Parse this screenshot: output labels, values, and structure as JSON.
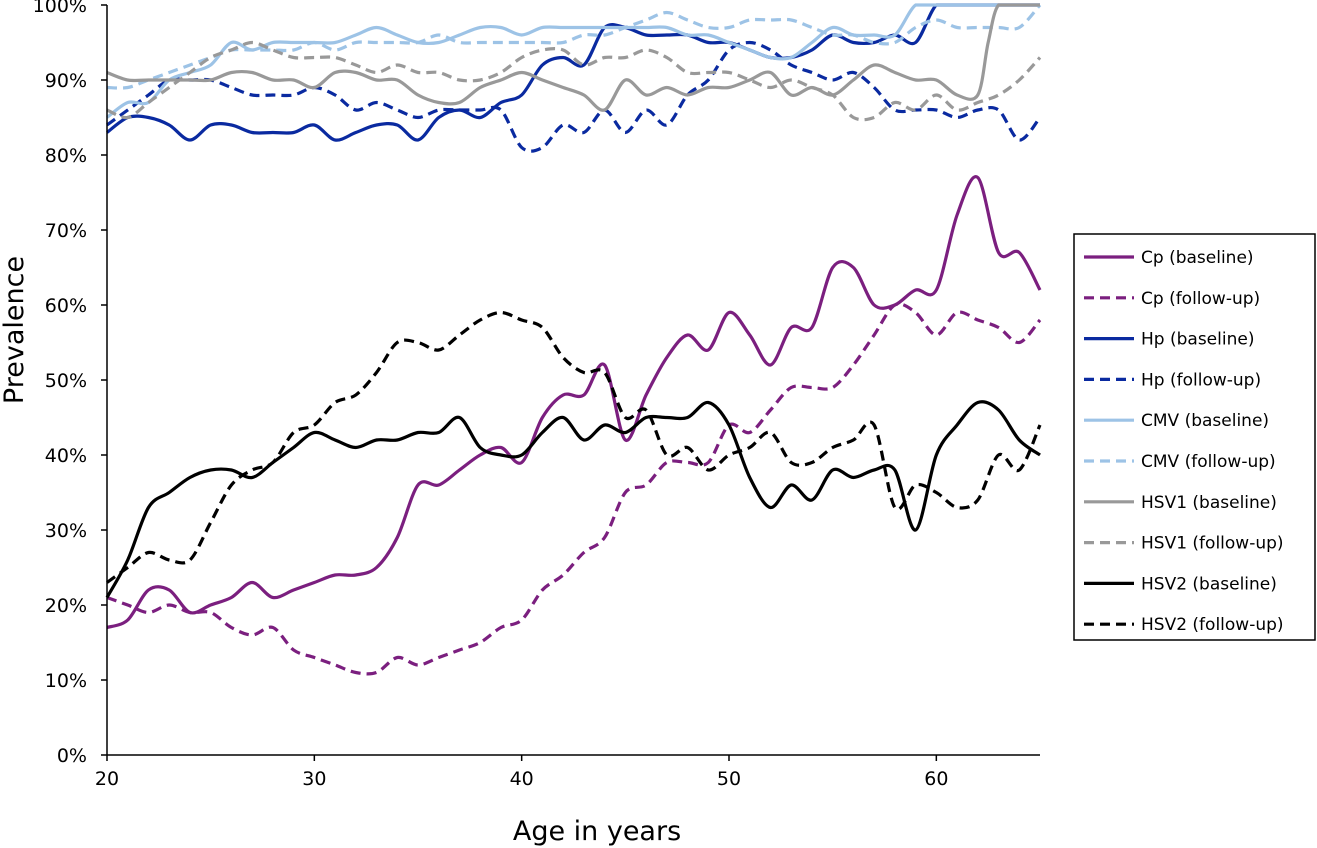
{
  "chart_data": {
    "type": "line",
    "title": "",
    "xlabel": "Age in years",
    "ylabel": "Prevalence",
    "xlim": [
      20,
      65
    ],
    "ylim": [
      0,
      100
    ],
    "x_ticks": [
      20,
      30,
      40,
      50,
      60
    ],
    "y_ticks": [
      0,
      10,
      20,
      30,
      40,
      50,
      60,
      70,
      80,
      90,
      100
    ],
    "y_tick_suffix": "%",
    "grid": false,
    "legend_position": "right",
    "series": [
      {
        "name": "Cp (baseline)",
        "color": "#7B1F7F",
        "dash": "solid",
        "x": [
          20,
          21,
          22,
          23,
          24,
          25,
          26,
          27,
          28,
          29,
          30,
          31,
          32,
          33,
          34,
          35,
          36,
          37,
          38,
          39,
          40,
          41,
          42,
          43,
          44,
          45,
          46,
          47,
          48,
          49,
          50,
          51,
          52,
          53,
          54,
          55,
          56,
          57,
          58,
          59,
          60,
          61,
          62,
          63,
          64,
          65
        ],
        "y": [
          17,
          18,
          22,
          22,
          19,
          20,
          21,
          23,
          21,
          22,
          23,
          24,
          24,
          25,
          29,
          36,
          36,
          38,
          40,
          41,
          39,
          45,
          48,
          48,
          52,
          42,
          48,
          53,
          56,
          54,
          59,
          56,
          52,
          57,
          57,
          65,
          65,
          60,
          60,
          62,
          62,
          72,
          77,
          67,
          67,
          62
        ]
      },
      {
        "name": "Cp (follow-up)",
        "color": "#7B1F7F",
        "dash": "dashed",
        "x": [
          20,
          21,
          22,
          23,
          24,
          25,
          26,
          27,
          28,
          29,
          30,
          31,
          32,
          33,
          34,
          35,
          36,
          37,
          38,
          39,
          40,
          41,
          42,
          43,
          44,
          45,
          46,
          47,
          48,
          49,
          50,
          51,
          52,
          53,
          54,
          55,
          56,
          57,
          58,
          59,
          60,
          61,
          62,
          63,
          64,
          65
        ],
        "y": [
          21,
          20,
          19,
          20,
          19,
          19,
          17,
          16,
          17,
          14,
          13,
          12,
          11,
          11,
          13,
          12,
          13,
          14,
          15,
          17,
          18,
          22,
          24,
          27,
          29,
          35,
          36,
          39,
          39,
          39,
          44,
          43,
          46,
          49,
          49,
          49,
          52,
          56,
          60,
          59,
          56,
          59,
          58,
          57,
          55,
          58
        ]
      },
      {
        "name": "Hp (baseline)",
        "color": "#0A2AA0",
        "dash": "solid",
        "x": [
          20,
          21,
          22,
          23,
          24,
          25,
          26,
          27,
          28,
          29,
          30,
          31,
          32,
          33,
          34,
          35,
          36,
          37,
          38,
          39,
          40,
          41,
          42,
          43,
          44,
          45,
          46,
          47,
          48,
          49,
          50,
          51,
          52,
          53,
          54,
          55,
          56,
          57,
          58,
          59,
          60,
          61,
          62,
          63,
          64,
          65
        ],
        "y": [
          83,
          85,
          85,
          84,
          82,
          84,
          84,
          83,
          83,
          83,
          84,
          82,
          83,
          84,
          84,
          82,
          85,
          86,
          85,
          87,
          88,
          92,
          93,
          92,
          97,
          97,
          96,
          96,
          96,
          95,
          95,
          94,
          93,
          93,
          94,
          96,
          95,
          95,
          96,
          95,
          100,
          100,
          100,
          100,
          100,
          100
        ]
      },
      {
        "name": "Hp (follow-up)",
        "color": "#0A2AA0",
        "dash": "dashed",
        "x": [
          20,
          21,
          22,
          23,
          24,
          25,
          26,
          27,
          28,
          29,
          30,
          31,
          32,
          33,
          34,
          35,
          36,
          37,
          38,
          39,
          40,
          41,
          42,
          43,
          44,
          45,
          46,
          47,
          48,
          49,
          50,
          51,
          52,
          53,
          54,
          55,
          56,
          57,
          58,
          59,
          60,
          61,
          62,
          63,
          64,
          65
        ],
        "y": [
          84,
          86,
          88,
          90,
          90,
          90,
          89,
          88,
          88,
          88,
          89,
          88,
          86,
          87,
          86,
          85,
          86,
          86,
          86,
          86,
          81,
          81,
          84,
          83,
          86,
          83,
          86,
          84,
          88,
          90,
          94,
          95,
          94,
          92,
          91,
          90,
          91,
          89,
          86,
          86,
          86,
          85,
          86,
          86,
          82,
          85
        ]
      },
      {
        "name": "CMV (baseline)",
        "color": "#9DC3E6",
        "dash": "solid",
        "x": [
          20,
          21,
          22,
          23,
          24,
          25,
          26,
          27,
          28,
          29,
          30,
          31,
          32,
          33,
          34,
          35,
          36,
          37,
          38,
          39,
          40,
          41,
          42,
          43,
          44,
          45,
          46,
          47,
          48,
          49,
          50,
          51,
          52,
          53,
          54,
          55,
          56,
          57,
          58,
          59,
          60,
          61,
          62,
          63,
          64,
          65
        ],
        "y": [
          85,
          87,
          87,
          90,
          91,
          92,
          95,
          94,
          95,
          95,
          95,
          95,
          96,
          97,
          96,
          95,
          95,
          96,
          97,
          97,
          96,
          97,
          97,
          97,
          97,
          97,
          97,
          97,
          96,
          96,
          95,
          94,
          93,
          93,
          95,
          97,
          96,
          96,
          96,
          100,
          100,
          100,
          100,
          100,
          100,
          100
        ]
      },
      {
        "name": "CMV (follow-up)",
        "color": "#9DC3E6",
        "dash": "dashed",
        "x": [
          20,
          21,
          22,
          23,
          24,
          25,
          26,
          27,
          28,
          29,
          30,
          31,
          32,
          33,
          34,
          35,
          36,
          37,
          38,
          39,
          40,
          41,
          42,
          43,
          44,
          45,
          46,
          47,
          48,
          49,
          50,
          51,
          52,
          53,
          54,
          55,
          56,
          57,
          58,
          59,
          60,
          61,
          62,
          63,
          64,
          65
        ],
        "y": [
          89,
          89,
          90,
          91,
          92,
          93,
          94,
          94,
          94,
          94,
          95,
          94,
          95,
          95,
          95,
          95,
          96,
          95,
          95,
          95,
          95,
          95,
          95,
          96,
          96,
          97,
          98,
          99,
          98,
          97,
          97,
          98,
          98,
          98,
          97,
          96,
          96,
          95,
          95,
          97,
          98,
          97,
          97,
          97,
          97,
          100
        ]
      },
      {
        "name": "HSV1 (baseline)",
        "color": "#999999",
        "dash": "solid",
        "x": [
          20,
          21,
          22,
          23,
          24,
          25,
          26,
          27,
          28,
          29,
          30,
          31,
          32,
          33,
          34,
          35,
          36,
          37,
          38,
          39,
          40,
          41,
          42,
          43,
          44,
          45,
          46,
          47,
          48,
          49,
          50,
          51,
          52,
          53,
          54,
          55,
          56,
          57,
          58,
          59,
          60,
          61,
          62,
          62.5,
          63,
          64,
          65
        ],
        "y": [
          91,
          90,
          90,
          90,
          90,
          90,
          91,
          91,
          90,
          90,
          89,
          91,
          91,
          90,
          90,
          88,
          87,
          87,
          89,
          90,
          91,
          90,
          89,
          88,
          86,
          90,
          88,
          89,
          88,
          89,
          89,
          90,
          91,
          88,
          89,
          88,
          90,
          92,
          91,
          90,
          90,
          88,
          88,
          95,
          100,
          100,
          100
        ]
      },
      {
        "name": "HSV1 (follow-up)",
        "color": "#999999",
        "dash": "dashed",
        "x": [
          20,
          21,
          22,
          23,
          24,
          25,
          26,
          27,
          28,
          29,
          30,
          31,
          32,
          33,
          34,
          35,
          36,
          37,
          38,
          39,
          40,
          41,
          42,
          43,
          44,
          45,
          46,
          47,
          48,
          49,
          50,
          51,
          52,
          53,
          54,
          55,
          56,
          57,
          58,
          59,
          60,
          61,
          62,
          63,
          64,
          65
        ],
        "y": [
          86,
          85,
          87,
          89,
          91,
          93,
          94,
          95,
          94,
          93,
          93,
          93,
          92,
          91,
          92,
          91,
          91,
          90,
          90,
          91,
          93,
          94,
          94,
          92,
          93,
          93,
          94,
          93,
          91,
          91,
          91,
          90,
          89,
          90,
          89,
          88,
          85,
          85,
          87,
          86,
          88,
          86,
          87,
          88,
          90,
          93
        ]
      },
      {
        "name": "HSV2 (baseline)",
        "color": "#000000",
        "dash": "solid",
        "x": [
          20,
          21,
          22,
          23,
          24,
          25,
          26,
          27,
          28,
          29,
          30,
          31,
          32,
          33,
          34,
          35,
          36,
          37,
          38,
          39,
          40,
          41,
          42,
          43,
          44,
          45,
          46,
          47,
          48,
          49,
          50,
          51,
          52,
          53,
          54,
          55,
          56,
          57,
          58,
          59,
          60,
          61,
          62,
          63,
          64,
          65
        ],
        "y": [
          21,
          26,
          33,
          35,
          37,
          38,
          38,
          37,
          39,
          41,
          43,
          42,
          41,
          42,
          42,
          43,
          43,
          45,
          41,
          40,
          40,
          43,
          45,
          42,
          44,
          43,
          45,
          45,
          45,
          47,
          44,
          37,
          33,
          36,
          34,
          38,
          37,
          38,
          38,
          30,
          40,
          44,
          47,
          46,
          42,
          40
        ]
      },
      {
        "name": "HSV2 (follow-up)",
        "color": "#000000",
        "dash": "dashed",
        "x": [
          20,
          21,
          22,
          23,
          24,
          25,
          26,
          27,
          28,
          29,
          30,
          31,
          32,
          33,
          34,
          35,
          36,
          37,
          38,
          39,
          40,
          41,
          42,
          43,
          44,
          45,
          46,
          47,
          48,
          49,
          50,
          51,
          52,
          53,
          54,
          55,
          56,
          57,
          58,
          59,
          60,
          61,
          62,
          63,
          64,
          65
        ],
        "y": [
          23,
          25,
          27,
          26,
          26,
          31,
          36,
          38,
          39,
          43,
          44,
          47,
          48,
          51,
          55,
          55,
          54,
          56,
          58,
          59,
          58,
          57,
          53,
          51,
          51,
          45,
          46,
          40,
          41,
          38,
          40,
          41,
          43,
          39,
          39,
          41,
          42,
          44,
          33,
          36,
          35,
          33,
          34,
          40,
          38,
          44
        ]
      }
    ]
  }
}
